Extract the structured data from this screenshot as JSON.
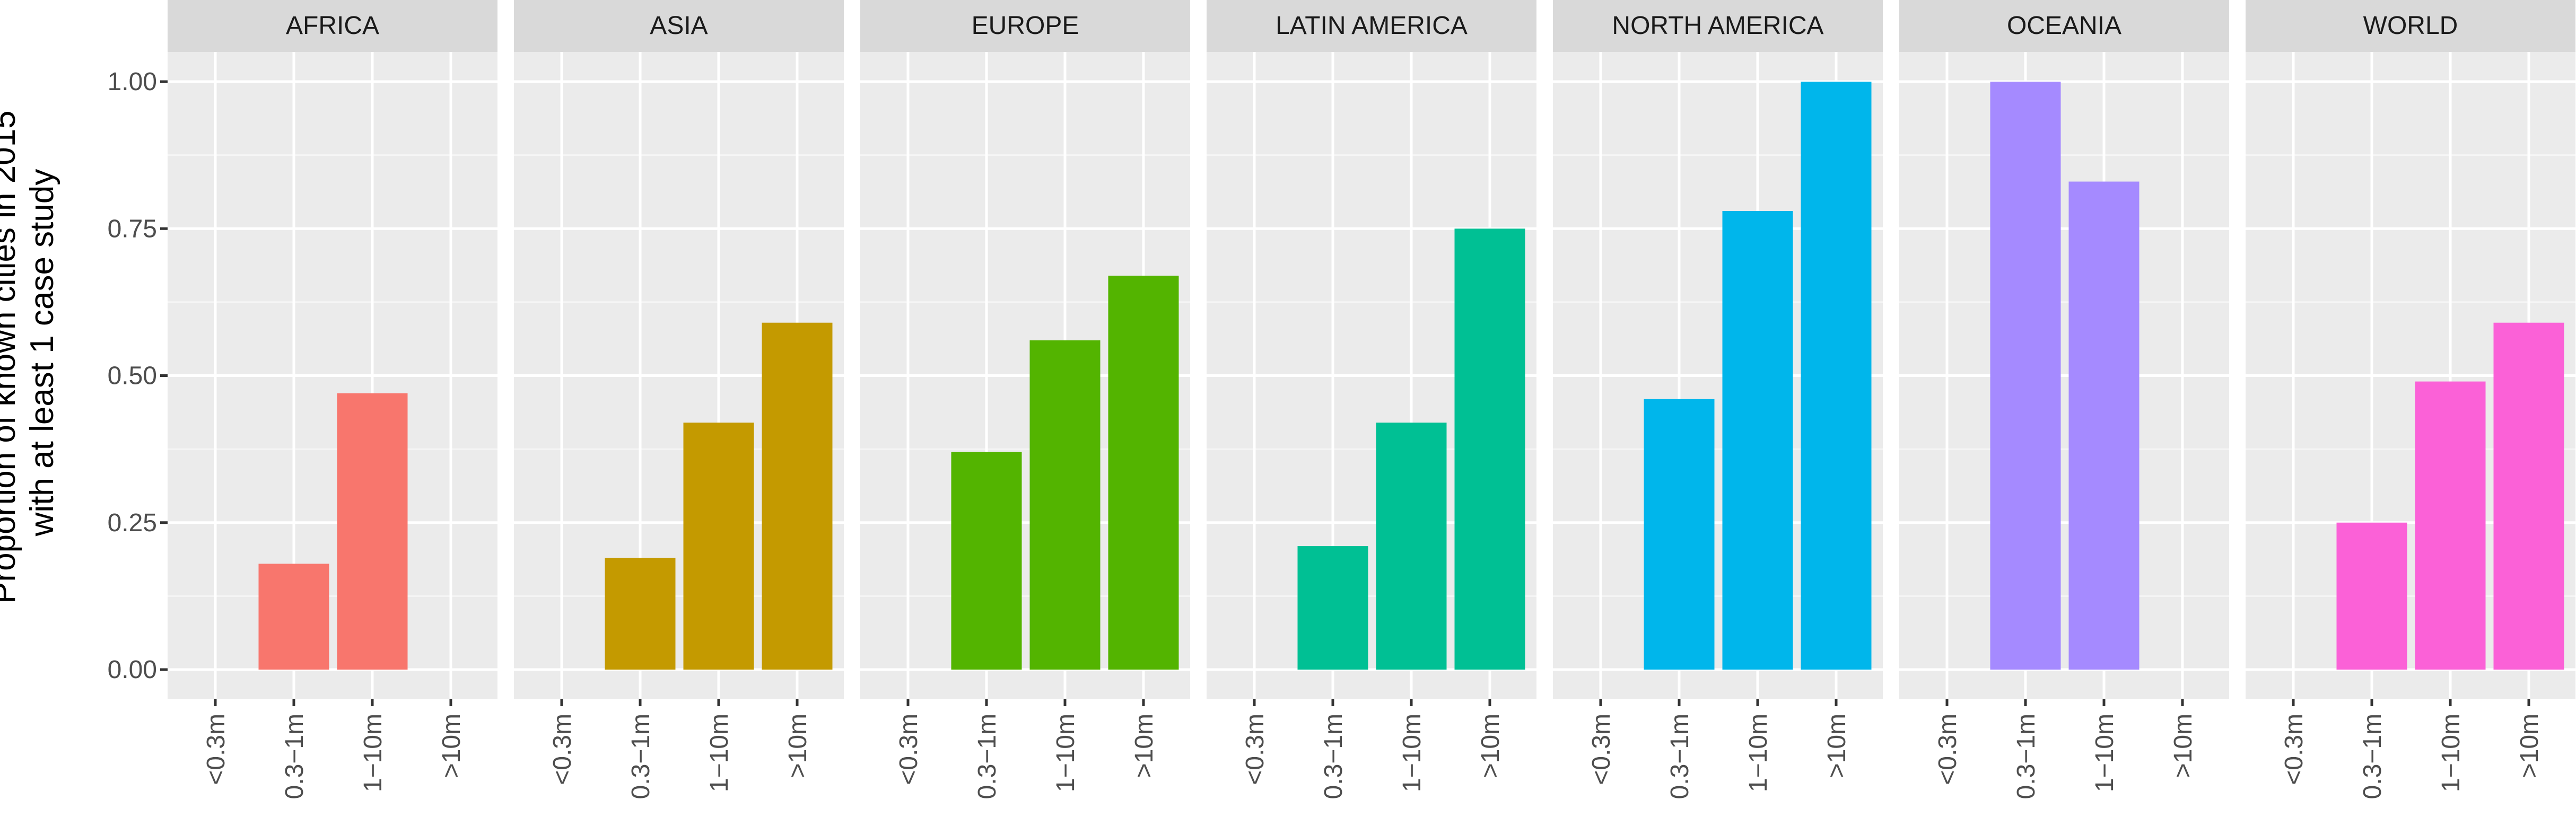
{
  "chart_data": {
    "type": "bar",
    "facet_by": "region",
    "ylabel_lines": [
      "Proportion of known cities in 2015",
      "with at least 1 case study"
    ],
    "xlabel": "",
    "categories": [
      "<0.3m",
      "0.3−1m",
      "1−10m",
      ">10m"
    ],
    "ylim": [
      0,
      1.05
    ],
    "yticks": [
      "0.00",
      "0.25",
      "0.50",
      "0.75",
      "1.00"
    ],
    "ytick_values": [
      0,
      0.25,
      0.5,
      0.75,
      1.0
    ],
    "grid": true,
    "legend": "none",
    "series": [
      {
        "name": "AFRICA",
        "color": "#F8766D",
        "values": [
          null,
          0.18,
          0.47,
          null
        ]
      },
      {
        "name": "ASIA",
        "color": "#C49A00",
        "values": [
          null,
          0.19,
          0.42,
          0.59
        ]
      },
      {
        "name": "EUROPE",
        "color": "#53B400",
        "values": [
          null,
          0.37,
          0.56,
          0.67
        ]
      },
      {
        "name": "LATIN AMERICA",
        "color": "#00C094",
        "values": [
          null,
          0.21,
          0.42,
          0.75
        ]
      },
      {
        "name": "NORTH AMERICA",
        "color": "#00B6EB",
        "values": [
          null,
          0.46,
          0.78,
          1.0
        ]
      },
      {
        "name": "OCEANIA",
        "color": "#A58AFF",
        "values": [
          null,
          1.0,
          0.83,
          null
        ]
      },
      {
        "name": "WORLD",
        "color": "#FB61D7",
        "values": [
          null,
          0.25,
          0.49,
          0.59
        ]
      }
    ]
  }
}
